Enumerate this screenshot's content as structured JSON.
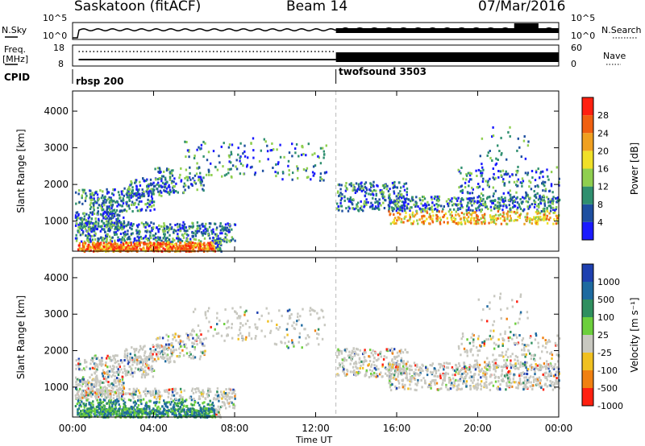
{
  "header": {
    "title": "Saskatoon (fitACF)",
    "beam": "Beam 14",
    "date": "07/Mar/2016"
  },
  "noise_panel": {
    "left_label": "N.Sky",
    "right_label": "N.Search",
    "tick_top": "10^5",
    "tick_bottom": "10^0"
  },
  "freq_panel": {
    "label_top": "Freq.",
    "label_bottom": "[MHz]",
    "tick_high": "18",
    "tick_low": "8",
    "right_label": "Nave",
    "right_tick_high": "60",
    "right_tick_low": "0"
  },
  "cpid_panel": {
    "label": "CPID",
    "programs": [
      {
        "name": "rbsp 200",
        "start_hour": 0
      },
      {
        "name": "twofsound 3503",
        "start_hour": 13
      }
    ]
  },
  "x_axis": {
    "label": "Time UT",
    "ticks": [
      "00:00",
      "04:00",
      "08:00",
      "12:00",
      "16:00",
      "20:00",
      "00:00"
    ],
    "tick_hours": [
      0,
      4,
      8,
      12,
      16,
      20,
      24
    ]
  },
  "colors": {
    "dashed_marker": "#bbbbbb",
    "frame": "#000000"
  },
  "chart_data": [
    {
      "type": "heatmap",
      "name": "power",
      "ylabel": "Slant Range [km]",
      "ylim": [
        180,
        4550
      ],
      "yticks": [
        1000,
        2000,
        3000,
        4000
      ],
      "colorbar": {
        "label": "Power [dB]",
        "ticks": [
          "4",
          "8",
          "12",
          "16",
          "20",
          "24",
          "28"
        ],
        "colors": [
          "#1a1aff",
          "#1e4fa0",
          "#2f8f6f",
          "#8fcf4f",
          "#f0e028",
          "#f0a020",
          "#f06010",
          "#ff2010"
        ]
      }
    },
    {
      "type": "heatmap",
      "name": "velocity",
      "ylabel": "Slant Range [km]",
      "ylim": [
        180,
        4550
      ],
      "yticks": [
        1000,
        2000,
        3000,
        4000
      ],
      "colorbar": {
        "label": "Velocity [m s^-1]",
        "ticks": [
          "1000",
          "500",
          "100",
          "25",
          "-25",
          "-100",
          "-500",
          "-1000"
        ],
        "colors": [
          "#1e40b0",
          "#1e6aa0",
          "#2f8f5f",
          "#6ccf3c",
          "#c8c8c0",
          "#f0c020",
          "#f08010",
          "#ff2010"
        ]
      }
    }
  ]
}
